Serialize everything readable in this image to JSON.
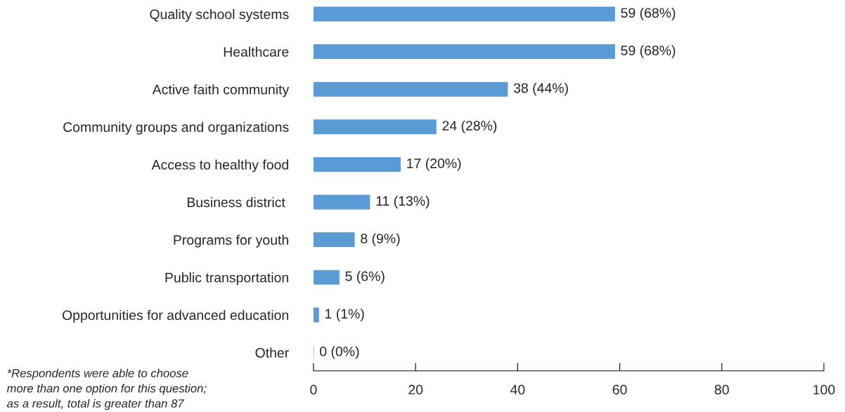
{
  "chart_data": {
    "type": "bar",
    "orientation": "horizontal",
    "categories": [
      "Quality school systems",
      "Healthcare",
      "Active faith community",
      "Community groups and organizations",
      "Access to healthy food",
      "Business district ",
      "Programs for youth",
      "Public transportation",
      "Opportunities for advanced education",
      "Other"
    ],
    "values": [
      59,
      59,
      38,
      24,
      17,
      11,
      8,
      5,
      1,
      0
    ],
    "value_labels": [
      "59 (68%)",
      "59 (68%)",
      "38 (44%)",
      "24 (28%)",
      "17 (20%)",
      "11 (13%)",
      "8 (9%)",
      "5 (6%)",
      "1 (1%)",
      "0 (0%)"
    ],
    "color": "#5b9bd5",
    "xlim": [
      0,
      100
    ],
    "xticks": [
      0,
      20,
      40,
      60,
      80,
      100
    ],
    "grid": false,
    "legend": false,
    "annotations": [
      "*Respondents were able to choose\nmore than one option for this question;\nas a result, total is greater than 87"
    ]
  }
}
